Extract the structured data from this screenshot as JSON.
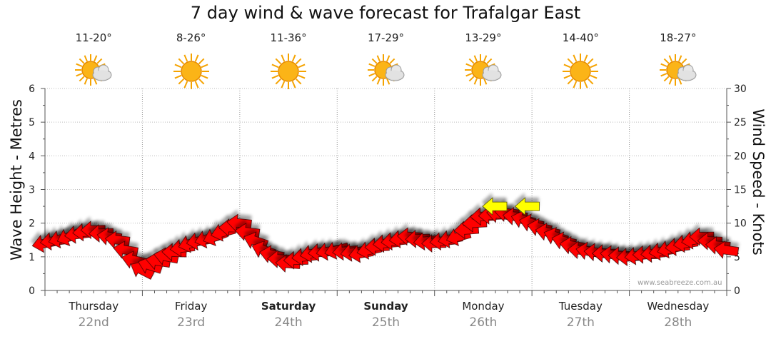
{
  "chart_data": {
    "type": "line",
    "title": "7 day wind & wave forecast for Trafalgar East",
    "ylabel_left": "Wave Height - Metres",
    "ylabel_right": "Wind Speed - Knots",
    "ylim_left": [
      0,
      6
    ],
    "ylim_right": [
      0,
      30
    ],
    "yticks_left": [
      "0",
      "1",
      "2",
      "3",
      "4",
      "5",
      "6"
    ],
    "yticks_right": [
      "0",
      "5",
      "10",
      "15",
      "20",
      "25",
      "30"
    ],
    "grid": true,
    "days": [
      {
        "name": "Thursday",
        "date": "22nd",
        "temp": "11-20°",
        "icon": "partly-cloudy-icon",
        "bold": false
      },
      {
        "name": "Friday",
        "date": "23rd",
        "temp": "8-26°",
        "icon": "sunny-icon",
        "bold": false
      },
      {
        "name": "Saturday",
        "date": "24th",
        "temp": "11-36°",
        "icon": "sunny-icon",
        "bold": true
      },
      {
        "name": "Sunday",
        "date": "25th",
        "temp": "17-29°",
        "icon": "partly-cloudy-icon",
        "bold": true
      },
      {
        "name": "Monday",
        "date": "26th",
        "temp": "13-29°",
        "icon": "partly-cloudy-icon",
        "bold": false
      },
      {
        "name": "Tuesday",
        "date": "27th",
        "temp": "14-40°",
        "icon": "sunny-icon",
        "bold": false
      },
      {
        "name": "Wednesday",
        "date": "28th",
        "temp": "18-27°",
        "icon": "partly-cloudy-icon",
        "bold": false
      }
    ],
    "wind_series": {
      "name": "Wind Speed (knots)",
      "x_hours": [
        0,
        6,
        12,
        18,
        24,
        30,
        36,
        42,
        48,
        54,
        60,
        66,
        72,
        78,
        84,
        90,
        96,
        102,
        108,
        114,
        120,
        126,
        132,
        138,
        144,
        150,
        156,
        162,
        168
      ],
      "knots": [
        7,
        8,
        9,
        7.5,
        3,
        5,
        7,
        8,
        10,
        6,
        4,
        5.5,
        6,
        5.5,
        7,
        8,
        7,
        8,
        11,
        11.5,
        10,
        8,
        6,
        5.5,
        5,
        5.5,
        6.5,
        8,
        6
      ],
      "direction_deg": [
        80,
        60,
        90,
        100,
        130,
        100,
        70,
        60,
        100,
        120,
        90,
        80,
        70,
        75,
        80,
        90,
        80,
        70,
        90,
        100,
        110,
        115,
        105,
        95,
        85,
        80,
        75,
        80,
        110
      ],
      "color": "#ff0000",
      "strong_color": "#ffff00",
      "strong_markers": [
        {
          "hour": 111,
          "knots": 12.5,
          "direction_deg": 90
        },
        {
          "hour": 119,
          "knots": 12.5,
          "direction_deg": 90
        }
      ]
    }
  },
  "watermark": "www.seabreeze.com.au"
}
